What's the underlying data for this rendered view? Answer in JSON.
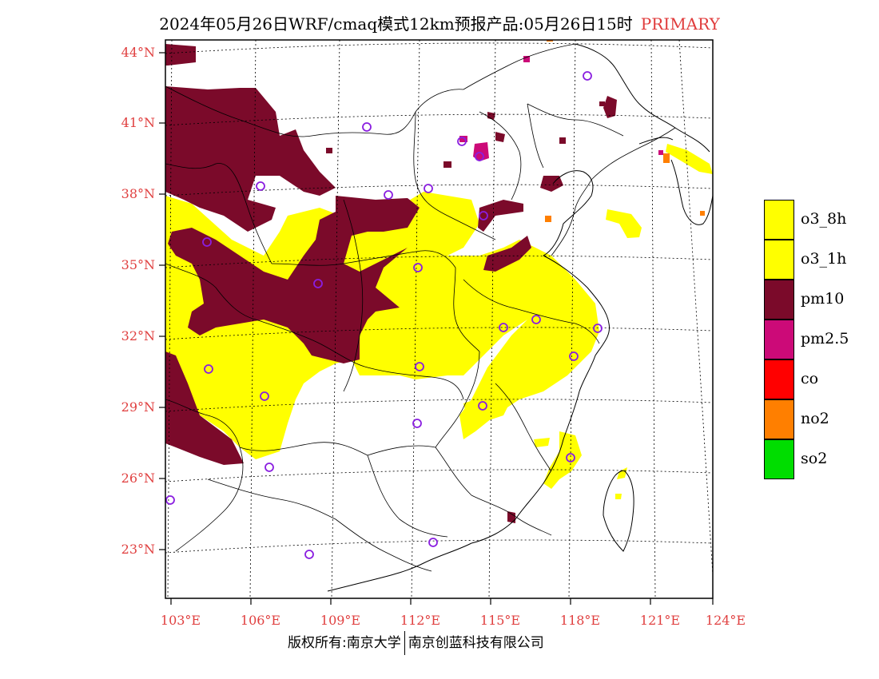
{
  "title": {
    "main": "2024年05月26日WRF/cmaq模式12km预报产品:05月26日15时",
    "mode": "PRIMARY"
  },
  "map": {
    "lon_range": [
      103,
      124
    ],
    "lat_range": [
      21,
      44.5
    ],
    "lat_ticks": [
      "44°N",
      "41°N",
      "38°N",
      "35°N",
      "32°N",
      "29°N",
      "26°N",
      "23°N"
    ],
    "lon_ticks": [
      "103°E",
      "106°E",
      "109°E",
      "112°E",
      "115°E",
      "118°E",
      "121°E",
      "124°E"
    ]
  },
  "legend": [
    {
      "label": "o3_8h",
      "color": "#ffff00"
    },
    {
      "label": "o3_1h",
      "color": "#ffff00"
    },
    {
      "label": "pm10",
      "color": "#7b0a2a"
    },
    {
      "label": "pm2.5",
      "color": "#cc0a78"
    },
    {
      "label": "co",
      "color": "#ff0000"
    },
    {
      "label": "no2",
      "color": "#ff7f00"
    },
    {
      "label": "so2",
      "color": "#00dd00"
    }
  ],
  "footer": {
    "left": "版权所有:南京大学",
    "right": "南京创蓝科技有限公司"
  }
}
